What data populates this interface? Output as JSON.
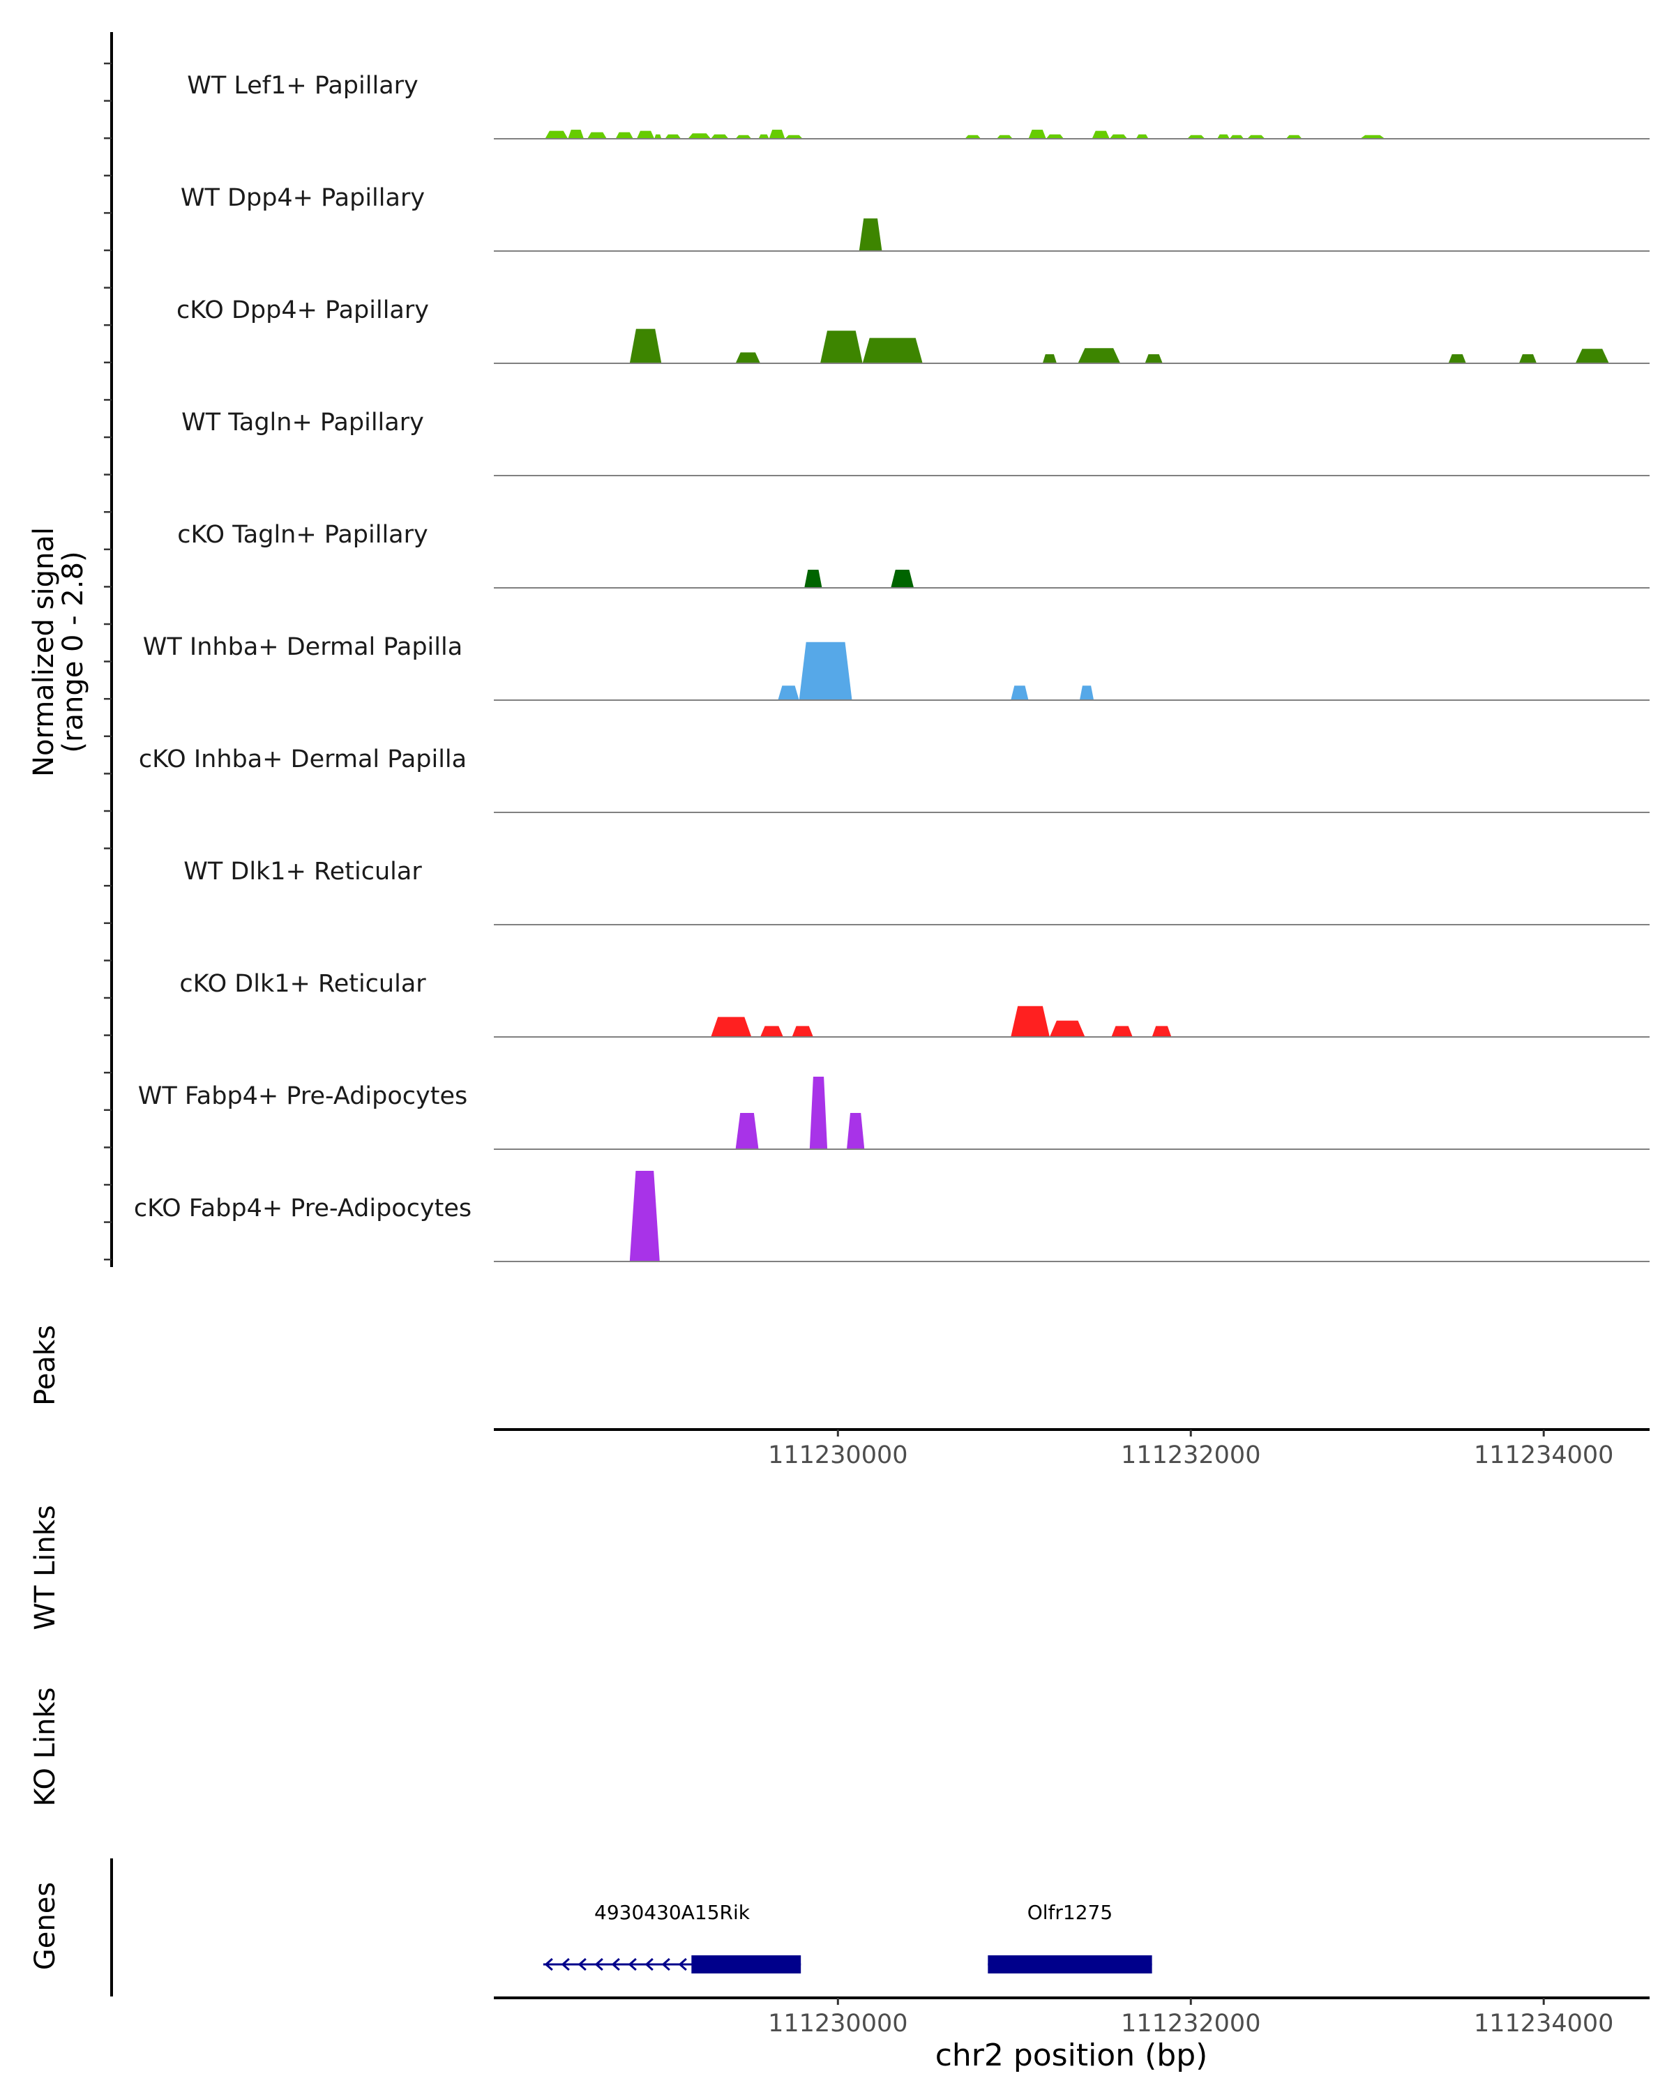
{
  "chart_data": {
    "type": "area",
    "title": "",
    "xlabel": "chr2 position (bp)",
    "signal_ylabel_line1": "Normalized signal",
    "signal_ylabel_line2": "(range 0 - 2.8)",
    "signal_range": [
      0,
      2.8
    ],
    "xlim": [
      111228050,
      111234600
    ],
    "x_ticks": [
      111230000,
      111232000,
      111234000
    ],
    "x_tick_labels": [
      "111230000",
      "111232000",
      "111234000"
    ],
    "panel_labels": {
      "peaks": "Peaks",
      "wt_links": "WT Links",
      "ko_links": "KO Links",
      "genes": "Genes"
    },
    "series": [
      {
        "name": "WT Lef1+ Papillary",
        "color": "#66cc00",
        "peaks": [
          [
            111228340,
            111228470,
            0.22
          ],
          [
            111228470,
            111228560,
            0.25
          ],
          [
            111228580,
            111228690,
            0.18
          ],
          [
            111228740,
            111228840,
            0.18
          ],
          [
            111228860,
            111228960,
            0.22
          ],
          [
            111228960,
            111229000,
            0.12
          ],
          [
            111229020,
            111229110,
            0.12
          ],
          [
            111229150,
            111229280,
            0.15
          ],
          [
            111229280,
            111229380,
            0.12
          ],
          [
            111229420,
            111229510,
            0.1
          ],
          [
            111229550,
            111229610,
            0.12
          ],
          [
            111229610,
            111229700,
            0.25
          ],
          [
            111229700,
            111229800,
            0.1
          ],
          [
            111230720,
            111230810,
            0.1
          ],
          [
            111230900,
            111230990,
            0.1
          ],
          [
            111231080,
            111231180,
            0.25
          ],
          [
            111231180,
            111231280,
            0.12
          ],
          [
            111231440,
            111231540,
            0.22
          ],
          [
            111231540,
            111231640,
            0.12
          ],
          [
            111231690,
            111231760,
            0.12
          ],
          [
            111231980,
            111232080,
            0.1
          ],
          [
            111232150,
            111232220,
            0.12
          ],
          [
            111232220,
            111232300,
            0.1
          ],
          [
            111232320,
            111232420,
            0.1
          ],
          [
            111232540,
            111232630,
            0.1
          ],
          [
            111232960,
            111233100,
            0.1
          ]
        ]
      },
      {
        "name": "WT Dpp4+ Papillary",
        "color": "#3d8500",
        "peaks": [
          [
            111230120,
            111230250,
            0.9
          ]
        ]
      },
      {
        "name": "cKO Dpp4+ Papillary",
        "color": "#3d8500",
        "peaks": [
          [
            111228820,
            111229000,
            0.95
          ],
          [
            111229420,
            111229560,
            0.3
          ],
          [
            111229900,
            111230140,
            0.9
          ],
          [
            111230140,
            111230480,
            0.7
          ],
          [
            111231160,
            111231240,
            0.25
          ],
          [
            111231360,
            111231600,
            0.42
          ],
          [
            111231740,
            111231840,
            0.25
          ],
          [
            111233460,
            111233560,
            0.25
          ],
          [
            111233860,
            111233960,
            0.25
          ],
          [
            111234180,
            111234370,
            0.4
          ]
        ]
      },
      {
        "name": "WT Tagln+ Papillary",
        "color": "#006400",
        "peaks": []
      },
      {
        "name": "cKO Tagln+ Papillary",
        "color": "#006400",
        "peaks": [
          [
            111229810,
            111229910,
            0.5
          ],
          [
            111230300,
            111230430,
            0.5
          ]
        ]
      },
      {
        "name": "WT Inhba+ Dermal Papilla",
        "color": "#56a8e8",
        "peaks": [
          [
            111229660,
            111229780,
            0.4
          ],
          [
            111229780,
            111230080,
            1.6
          ],
          [
            111230980,
            111231080,
            0.4
          ],
          [
            111231370,
            111231450,
            0.4
          ]
        ]
      },
      {
        "name": "cKO Inhba+ Dermal Papilla",
        "color": "#56a8e8",
        "peaks": []
      },
      {
        "name": "WT Dlk1+ Reticular",
        "color": "#ff2020",
        "peaks": []
      },
      {
        "name": "cKO Dlk1+ Reticular",
        "color": "#ff2020",
        "peaks": [
          [
            111229280,
            111229510,
            0.55
          ],
          [
            111229560,
            111229690,
            0.3
          ],
          [
            111229740,
            111229860,
            0.3
          ],
          [
            111230980,
            111231200,
            0.85
          ],
          [
            111231200,
            111231400,
            0.45
          ],
          [
            111231550,
            111231670,
            0.3
          ],
          [
            111231780,
            111231890,
            0.3
          ]
        ]
      },
      {
        "name": "WT Fabp4+ Pre-Adipocytes",
        "color": "#a833e8",
        "peaks": [
          [
            111229420,
            111229550,
            1.0
          ],
          [
            111229840,
            111229940,
            2.0
          ],
          [
            111230050,
            111230150,
            1.0
          ]
        ]
      },
      {
        "name": "cKO Fabp4+ Pre-Adipocytes",
        "color": "#a833e8",
        "peaks": [
          [
            111228820,
            111228990,
            2.5
          ]
        ]
      }
    ],
    "genes": [
      {
        "name": "4930430A15Rik",
        "strand": "-",
        "start": 111228330,
        "end": 111229790,
        "thick_start": 111229170,
        "thick_end": 111229790
      },
      {
        "name": "Olfr1275",
        "strand": "+",
        "start": 111230850,
        "end": 111231780,
        "thick_start": 111230850,
        "thick_end": 111231780
      }
    ],
    "colors": {
      "gene": "#00008b",
      "baseline": "#808080",
      "axis": "#000000"
    }
  }
}
